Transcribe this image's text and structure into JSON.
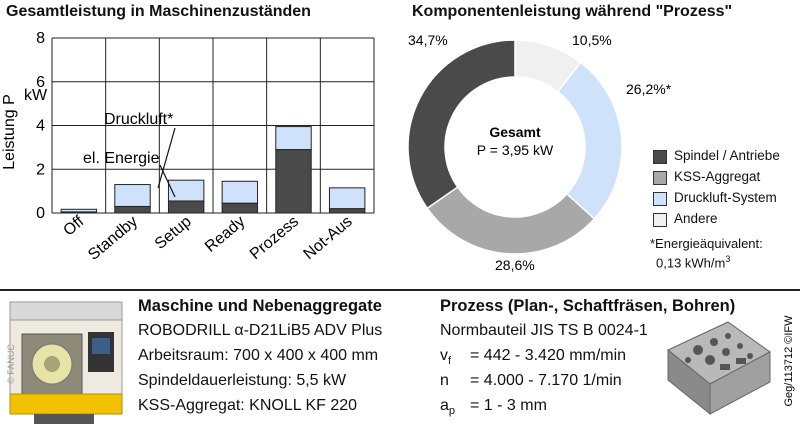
{
  "bar_title": "Gesamtleistung in Maschinenzuständen",
  "pie_title": "Komponentenleistung während \"Prozess\"",
  "colors": {
    "dark": "#4a4a4a",
    "light_blue": "#cfe2fb",
    "gray": "#a8a8a8",
    "white": "#f0f0f0"
  },
  "chart_data": [
    {
      "type": "bar",
      "title": "Gesamtleistung in Maschinenzuständen",
      "ylabel": "Leistung P",
      "yunit": "kW",
      "ylim": [
        0,
        8
      ],
      "yticks": [
        0,
        2,
        4,
        6,
        8
      ],
      "categories": [
        "Off",
        "Standby",
        "Setup",
        "Ready",
        "Prozess",
        "Not-Aus"
      ],
      "stacked": true,
      "series": [
        {
          "name": "el. Energie",
          "color": "#4a4a4a",
          "values": [
            0.05,
            0.3,
            0.55,
            0.45,
            2.9,
            0.2
          ]
        },
        {
          "name": "Druckluft*",
          "color": "#cfe2fb",
          "values": [
            0.12,
            1.0,
            0.95,
            1.0,
            1.05,
            0.95
          ]
        }
      ],
      "annotations": [
        "Druckluft*",
        "el. Energie"
      ],
      "grid": true
    },
    {
      "type": "pie",
      "donut": true,
      "title": "Komponentenleistung während \"Prozess\"",
      "center_title": "Gesamt",
      "center_value": "P = 3,95 kW",
      "slices": [
        {
          "name": "Spindel / Antriebe",
          "value": 34.7,
          "label": "34,7%",
          "color": "#4a4a4a"
        },
        {
          "name": "KSS-Aggregat",
          "value": 28.6,
          "label": "28,6%",
          "color": "#a8a8a8"
        },
        {
          "name": "Druckluft-System",
          "value": 26.2,
          "label": "26,2%*",
          "color": "#cfe2fb"
        },
        {
          "name": "Andere",
          "value": 10.5,
          "label": "10,5%",
          "color": "#f0f0f0"
        }
      ],
      "legend_order": [
        "Spindel / Antriebe",
        "KSS-Aggregat",
        "Druckluft-System",
        "Andere"
      ],
      "legend_position": "right",
      "footnote_line1": "*Energieäquivalent:",
      "footnote_line2": "0,13 kWh/m",
      "footnote_sup": "3"
    }
  ],
  "machine": {
    "heading": "Maschine und Nebenaggregate",
    "lines": [
      "ROBODRILL α-D21LiB5 ADV Plus",
      "Arbeitsraum: 700 x 400 x 400 mm",
      "Spindeldauerleistung: 5,5 kW",
      "KSS-Aggregat: KNOLL KF 220"
    ],
    "image_credit": "© FANUC"
  },
  "process": {
    "heading": "Prozess (Plan-, Schaftfräsen, Bohren)",
    "part": "Normbauteil JIS TS B 0024-1",
    "vf_sym": "v",
    "vf_sub": "f",
    "vf_val": "= 442 - 3.420 mm/min",
    "n_sym": "n",
    "n_val": "= 4.000 - 7.170 1/min",
    "ap_sym": "a",
    "ap_sub": "p",
    "ap_val": "= 1 - 3 mm"
  },
  "credit": "Geg/113712 ©IFW"
}
